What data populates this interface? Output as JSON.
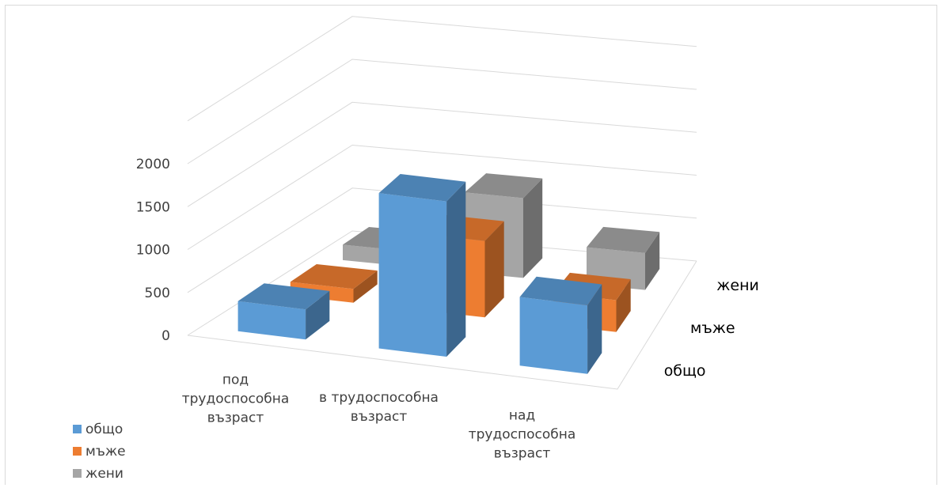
{
  "chart_data": {
    "type": "bar",
    "title": "",
    "xlabel": "",
    "ylabel": "",
    "categories": [
      [
        "под",
        "трудоспособна",
        "възраст"
      ],
      [
        "в трудоспособна",
        "възраст"
      ],
      [
        "над",
        "трудоспособна",
        "възраст"
      ]
    ],
    "series": [
      {
        "name": "общо",
        "color": "#5b9bd5",
        "values": [
          350,
          1810,
          800
        ]
      },
      {
        "name": "мъже",
        "color": "#ed7d31",
        "values": [
          160,
          890,
          370
        ]
      },
      {
        "name": "жени",
        "color": "#a5a5a5",
        "values": [
          180,
          930,
          430
        ]
      }
    ],
    "depth_labels": [
      "общо",
      "мъже",
      "жени"
    ],
    "y_ticks": [
      0,
      500,
      1000,
      1500,
      2000
    ],
    "ylim": [
      0,
      2500
    ],
    "grid": true,
    "legend_position": "bottom-left"
  }
}
